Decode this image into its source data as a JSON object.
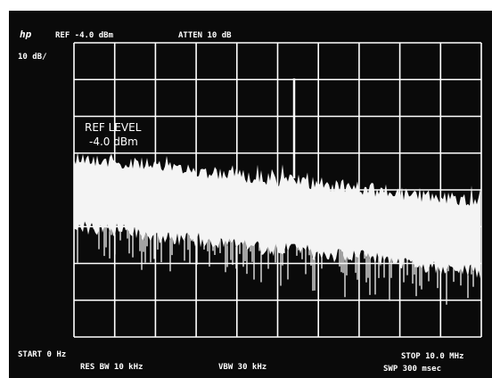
{
  "header": {
    "logo": "hp",
    "reference": "REF -4.0 dBm",
    "attenuation": "ATTEN 10 dB",
    "scale": "10 dB/"
  },
  "annotation": {
    "title": "REF LEVEL",
    "value": "-4.0 dBm"
  },
  "footer": {
    "start": "START 0 Hz",
    "resolution_bandwidth": "RES BW 10 kHz",
    "video_bandwidth": "VBW 30 kHz",
    "stop": "STOP 10.0 MHz",
    "sweep": "SWP 300 msec"
  }
}
